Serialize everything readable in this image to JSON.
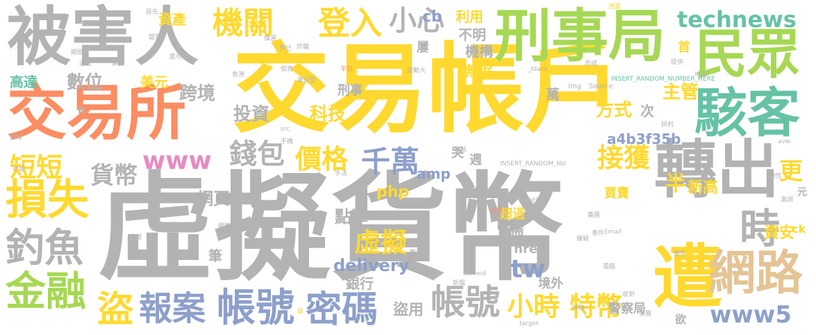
{
  "colors": {
    "gray": "#b3b3b3",
    "yellow": "#ffd92f",
    "orange": "#fc8d62",
    "green": "#a6d854",
    "teal": "#66c2a5",
    "blue": "#8da0cb",
    "pink": "#e78ac3",
    "tan": "#e5c494"
  },
  "words": [
    {
      "text": "虛擬貨幣",
      "color": "gray"
    },
    {
      "text": "交易帳戶",
      "color": "yellow"
    },
    {
      "text": "被害人",
      "color": "gray"
    },
    {
      "text": "刑事局",
      "color": "green"
    },
    {
      "text": "交易所",
      "color": "orange"
    },
    {
      "text": "民眾",
      "color": "green"
    },
    {
      "text": "駭客",
      "color": "teal"
    },
    {
      "text": "轉出",
      "color": "gray"
    },
    {
      "text": "遭",
      "color": "yellow"
    },
    {
      "text": "網路",
      "color": "tan"
    },
    {
      "text": "損失",
      "color": "yellow"
    },
    {
      "text": "金融",
      "color": "green"
    },
    {
      "text": "釣魚",
      "color": "gray"
    },
    {
      "text": "密碼",
      "color": "blue"
    },
    {
      "text": "帳號",
      "color": "blue"
    },
    {
      "text": "帳號",
      "color": "gray"
    },
    {
      "text": "報案",
      "color": "blue"
    },
    {
      "text": "盜",
      "color": "yellow"
    },
    {
      "text": "時",
      "color": "gray"
    },
    {
      "text": "機關",
      "color": "yellow"
    },
    {
      "text": "登入",
      "color": "yellow"
    },
    {
      "text": "小心",
      "color": "gray"
    },
    {
      "text": "technews",
      "color": "teal"
    },
    {
      "text": "千萬",
      "color": "blue"
    },
    {
      "text": "接獲",
      "color": "yellow"
    },
    {
      "text": "小時",
      "color": "yellow"
    },
    {
      "text": "特幣",
      "color": "yellow"
    },
    {
      "text": "www5",
      "color": "blue"
    },
    {
      "text": "錢包",
      "color": "gray"
    },
    {
      "text": "價格",
      "color": "yellow"
    },
    {
      "text": "虛擬",
      "color": "yellow"
    },
    {
      "text": "短短",
      "color": "yellow"
    },
    {
      "text": "貨幣",
      "color": "gray"
    },
    {
      "text": "www",
      "color": "pink"
    },
    {
      "text": "數位",
      "color": "gray"
    },
    {
      "text": "跨境",
      "color": "gray"
    },
    {
      "text": "投資",
      "color": "gray"
    },
    {
      "text": "科技",
      "color": "yellow"
    },
    {
      "text": "方式",
      "color": "yellow"
    },
    {
      "text": "主管",
      "color": "yellow"
    },
    {
      "text": "半",
      "color": "yellow"
    },
    {
      "text": "新高",
      "color": "yellow"
    },
    {
      "text": "更",
      "color": "yellow"
    },
    {
      "text": "資安",
      "color": "yellow"
    },
    {
      "text": "tw",
      "color": "blue"
    },
    {
      "text": "delivery",
      "color": "blue"
    },
    {
      "text": "點擊",
      "color": "gray"
    },
    {
      "text": "php",
      "color": "yellow"
    },
    {
      "text": "網頁",
      "color": "gray"
    },
    {
      "text": "cb",
      "color": "blue"
    },
    {
      "text": "不明",
      "color": "gray"
    },
    {
      "text": "利用",
      "color": "yellow"
    },
    {
      "text": "機構",
      "color": "gray"
    },
    {
      "text": "無涙",
      "color": "yellow"
    },
    {
      "text": "資產",
      "color": "yellow"
    },
    {
      "text": "美元",
      "color": "yellow"
    },
    {
      "text": "高達",
      "color": "teal"
    },
    {
      "text": "amp",
      "color": "blue"
    },
    {
      "text": "a4b3f35b",
      "color": "blue"
    },
    {
      "text": "盜用",
      "color": "gray"
    },
    {
      "text": "銀行",
      "color": "gray"
    },
    {
      "text": "筆",
      "color": "gray"
    },
    {
      "text": "需",
      "color": "gray"
    },
    {
      "text": "超過",
      "color": "yellow"
    },
    {
      "text": "買賣",
      "color": "yellow"
    },
    {
      "text": "href",
      "color": "gray"
    },
    {
      "text": "境外",
      "color": "gray"
    },
    {
      "text": "警察局",
      "color": "gray"
    },
    {
      "text": "刑事",
      "color": "gray"
    },
    {
      "text": "萬",
      "color": "gray"
    },
    {
      "text": "次",
      "color": "gray"
    },
    {
      "text": "創",
      "color": "gray"
    },
    {
      "text": "週",
      "color": "gray"
    },
    {
      "text": "哭",
      "color": "gray"
    },
    {
      "text": "首",
      "color": "yellow"
    },
    {
      "text": "屢",
      "color": "gray"
    },
    {
      "text": "欲",
      "color": "gray"
    },
    {
      "text": "ck",
      "color": "yellow"
    },
    {
      "text": "元",
      "color": "gray"
    },
    {
      "text": "n",
      "color": "gray"
    },
    {
      "text": "img",
      "color": "gray"
    },
    {
      "text": "Source",
      "color": "gray"
    },
    {
      "text": "_blank",
      "color": "gray"
    },
    {
      "text": "INSERT_RANDOM_NUMBER_HERE",
      "color": "teal"
    },
    {
      "text": "INSERT_RANDOM_NU",
      "color": "gray"
    },
    {
      "text": "zoneid",
      "color": "gray"
    },
    {
      "text": "Email",
      "color": "gray"
    },
    {
      "text": "target",
      "color": "gray"
    },
    {
      "text": "src",
      "color": "gray"
    },
    {
      "text": "avw",
      "color": "gray"
    },
    {
      "text": "波動大",
      "color": "gray"
    },
    {
      "text": "平日",
      "color": "orange"
    },
    {
      "text": "筆記型",
      "color": "gray"
    },
    {
      "text": "個資",
      "color": "gray"
    },
    {
      "text": "香港",
      "color": "gray"
    },
    {
      "text": "網路銀行",
      "color": "gray"
    },
    {
      "text": "透露",
      "color": "yellow"
    },
    {
      "text": "警告",
      "color": "gray"
    },
    {
      "text": "事件",
      "color": "gray"
    },
    {
      "text": "原先",
      "color": "gray"
    },
    {
      "text": "變更",
      "color": "gray"
    },
    {
      "text": "期間",
      "color": "gray"
    },
    {
      "text": "追查",
      "color": "gray"
    },
    {
      "text": "監理",
      "color": "gray"
    },
    {
      "text": "功能",
      "color": "gray"
    },
    {
      "text": "保管",
      "color": "gray"
    },
    {
      "text": "面可能",
      "color": "gray"
    },
    {
      "text": "詐騙",
      "color": "gray"
    },
    {
      "text": "恐成",
      "color": "gray"
    },
    {
      "text": "研判",
      "color": "gray"
    },
    {
      "text": "受理",
      "color": "gray"
    },
    {
      "text": "漏洞",
      "color": "gray"
    },
    {
      "text": "嫌疑",
      "color": "gray"
    },
    {
      "text": "藥團",
      "color": "gray"
    },
    {
      "text": "拒絕",
      "color": "orange"
    },
    {
      "text": "試圖",
      "color": "gray"
    },
    {
      "text": "電腦",
      "color": "gray"
    },
    {
      "text": "新報",
      "color": "gray"
    },
    {
      "text": "收到",
      "color": "gray"
    },
    {
      "text": "發展",
      "color": "gray"
    },
    {
      "text": "包括",
      "color": "gray"
    },
    {
      "text": "手機",
      "color": "gray"
    },
    {
      "text": "手法",
      "color": "gray"
    },
    {
      "text": "地區",
      "color": "gray"
    },
    {
      "text": "提供",
      "color": "gray"
    },
    {
      "text": "特性",
      "color": "gray"
    },
    {
      "text": "即已",
      "color": "gray"
    },
    {
      "text": "慎選",
      "color": "gray"
    },
    {
      "text": "伴隨",
      "color": "gray"
    },
    {
      "text": "難以",
      "color": "gray"
    },
    {
      "text": "亦",
      "color": "gray"
    },
    {
      "text": "a",
      "color": "yellow"
    }
  ]
}
